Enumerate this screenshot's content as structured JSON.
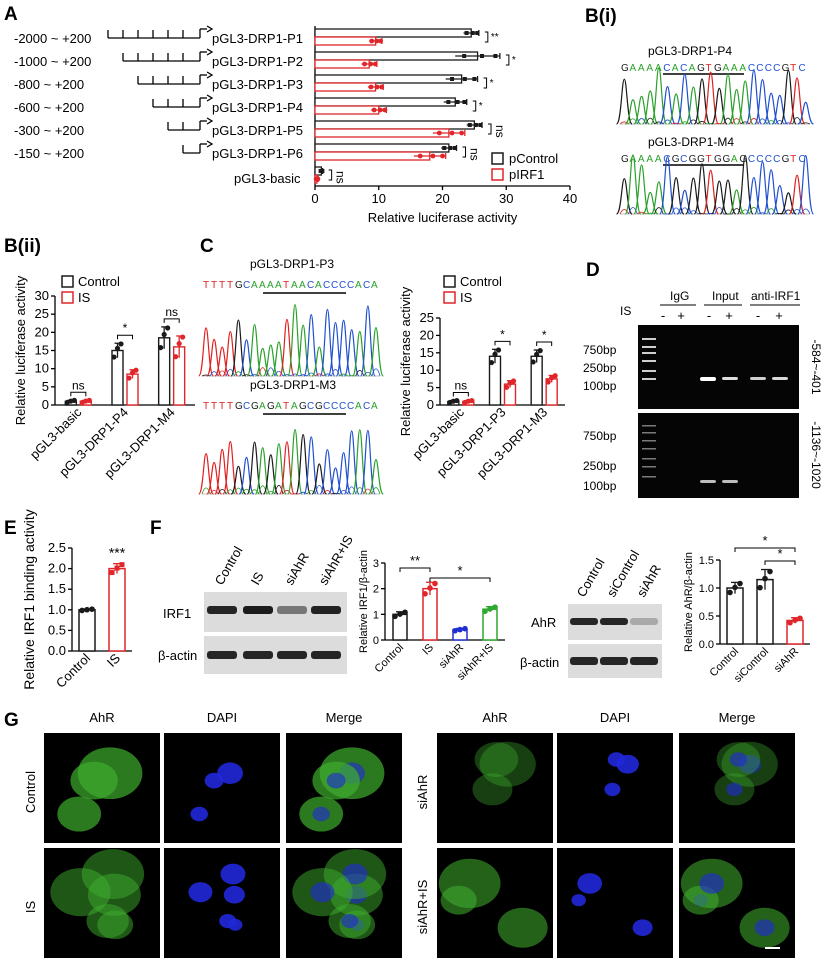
{
  "panel_labels": {
    "A": "A",
    "Bi": "B(i)",
    "Bii": "B(ii)",
    "C": "C",
    "D": "D",
    "E": "E",
    "F": "F",
    "G": "G"
  },
  "colors": {
    "control": "#1a1a1a",
    "irf1": "#e0262a",
    "sihr": "#2030d0",
    "sihr_is": "#2ea82e",
    "gel_bg": "#050505",
    "band": "#f2f2f2",
    "green": "#3fae2e",
    "blue": "#2028d8"
  },
  "panel_a": {
    "constructs": [
      {
        "range": "-2000 ~ +200",
        "name": "pGL3-DRP1-P1",
        "ticks": 6
      },
      {
        "range": "-1000 ~ +200",
        "name": "pGL3-DRP1-P2",
        "ticks": 5
      },
      {
        "range": "-800 ~ +200",
        "name": "pGL3-DRP1-P3",
        "ticks": 4
      },
      {
        "range": "-600 ~ +200",
        "name": "pGL3-DRP1-P4",
        "ticks": 3
      },
      {
        "range": "-300 ~ +200",
        "name": "pGL3-DRP1-P5",
        "ticks": 2
      },
      {
        "range": "-150 ~ +200",
        "name": "pGL3-DRP1-P6",
        "ticks": 1
      }
    ],
    "basic_label": "pGL3-basic",
    "legend": [
      "pControl",
      "pIRF1"
    ]
  },
  "panel_bi": {
    "title1": "pGL3-DRP1-P4",
    "seq1": [
      "G",
      "A",
      "A",
      "A",
      "A",
      "C",
      "A",
      "C",
      "A",
      "G",
      "T",
      "G",
      "A",
      "A",
      "A",
      "C",
      "C",
      "C",
      "C",
      "G",
      "T",
      "C"
    ],
    "title2": "pGL3-DRP1-M4",
    "seq2": [
      "G",
      "A",
      "A",
      "A",
      "A",
      "C",
      "G",
      "C",
      "G",
      "G",
      "T",
      "G",
      "G",
      "A",
      "G",
      "C",
      "C",
      "C",
      "C",
      "G",
      "T",
      "C"
    ]
  },
  "panel_c_seq": {
    "title1": "pGL3-DRP1-P3",
    "seq1": [
      "T",
      "T",
      "T",
      "T",
      "G",
      "C",
      "A",
      "A",
      "A",
      "A",
      "T",
      "A",
      "A",
      "C",
      "A",
      "C",
      "C",
      "C",
      "C",
      "A",
      "C",
      "A"
    ],
    "title2": "pGL3-DRP1-M3",
    "seq2": [
      "T",
      "T",
      "T",
      "T",
      "G",
      "C",
      "G",
      "A",
      "G",
      "A",
      "T",
      "A",
      "G",
      "C",
      "G",
      "C",
      "C",
      "C",
      "C",
      "A",
      "C",
      "A"
    ]
  },
  "panel_d": {
    "lane_label": "IS",
    "groups": [
      "IgG",
      "Input",
      "anti-IRF1"
    ],
    "signs": [
      "-",
      "+",
      "-",
      "+",
      "-",
      "+"
    ],
    "markers_top": [
      "750bp",
      "250bp",
      "100bp"
    ],
    "markers_bottom": [
      "750bp",
      "250bp",
      "100bp"
    ],
    "region_top": "-584~-401",
    "region_bottom": "-1136~-1020"
  },
  "panel_f": {
    "blot1_cols": [
      "Control",
      "IS",
      "siAhR",
      "siAhR+IS"
    ],
    "blot1_rows": [
      "IRF1",
      "β-actin"
    ],
    "blot2_cols": [
      "Control",
      "siControl",
      "siAhR"
    ],
    "blot2_rows": [
      "AhR",
      "β-actin"
    ]
  },
  "panel_g": {
    "col_heads": [
      "AhR",
      "DAPI",
      "Merge",
      "AhR",
      "DAPI",
      "Merge"
    ],
    "row_labels": [
      "Control",
      "IS",
      "siAhR",
      "siAhR+IS"
    ]
  },
  "chart_data": [
    {
      "id": "A",
      "type": "bar",
      "orientation": "horizontal",
      "categories": [
        "pGL3-DRP1-P1",
        "pGL3-DRP1-P2",
        "pGL3-DRP1-P3",
        "pGL3-DRP1-P4",
        "pGL3-DRP1-P5",
        "pGL3-DRP1-P6",
        "pGL3-basic"
      ],
      "series": [
        {
          "name": "pControl",
          "values": [
            24.5,
            25.5,
            23,
            22,
            25,
            21,
            1
          ],
          "errors": [
            1.2,
            3.5,
            2.5,
            1.8,
            1.2,
            1.2,
            0.2
          ]
        },
        {
          "name": "pIRF1",
          "values": [
            9.5,
            8.5,
            9.5,
            10,
            21,
            18,
            0.3
          ],
          "errors": [
            1,
            1.2,
            1.2,
            1.2,
            2.5,
            2.5,
            0.2
          ]
        }
      ],
      "significance": [
        "**",
        "*",
        "*",
        "*",
        "ns",
        "ns",
        "ns"
      ],
      "xlabel": "Relative luciferase activity",
      "xlim": [
        0,
        40
      ],
      "xticks": [
        0,
        10,
        20,
        30,
        40
      ]
    },
    {
      "id": "Bii",
      "type": "bar",
      "categories": [
        "pGL3-basic",
        "pGL3-DRP1-P4",
        "pGL3-DRP1-M4"
      ],
      "series": [
        {
          "name": "Control",
          "values": [
            1,
            15,
            18.5
          ],
          "errors": [
            0.3,
            2,
            3
          ]
        },
        {
          "name": "IS",
          "values": [
            1,
            8.5,
            16
          ],
          "errors": [
            0.3,
            1.2,
            3
          ]
        }
      ],
      "significance": [
        "ns",
        "*",
        "ns"
      ],
      "ylabel": "Relative luciferase activity",
      "ylim": [
        0,
        30
      ],
      "yticks": [
        0,
        5,
        10,
        15,
        20,
        25,
        30
      ],
      "legend": [
        "Control",
        "IS"
      ]
    },
    {
      "id": "C",
      "type": "bar",
      "categories": [
        "pGL3-basic",
        "pGL3-DRP1-P3",
        "pGL3-DRP1-M3"
      ],
      "series": [
        {
          "name": "Control",
          "values": [
            1,
            14,
            14
          ],
          "errors": [
            0.3,
            2,
            1.8
          ]
        },
        {
          "name": "IS",
          "values": [
            1,
            6,
            7.5
          ],
          "errors": [
            0.3,
            1,
            1
          ]
        }
      ],
      "significance": [
        "ns",
        "*",
        "*"
      ],
      "ylabel": "Relative luciferase activity",
      "ylim": [
        0,
        25
      ],
      "yticks": [
        0,
        5,
        10,
        15,
        20,
        25
      ],
      "legend": [
        "Control",
        "IS"
      ]
    },
    {
      "id": "E",
      "type": "bar",
      "categories": [
        "Control",
        "IS"
      ],
      "values": [
        1,
        2
      ],
      "errors": [
        0.02,
        0.12
      ],
      "significance": [
        "",
        "***"
      ],
      "ylabel": "Relative IRF1 binding activity",
      "ylim": [
        0,
        2.5
      ],
      "yticks": [
        0.0,
        0.5,
        1.0,
        1.5,
        2.0,
        2.5
      ]
    },
    {
      "id": "F1",
      "type": "bar",
      "categories": [
        "Control",
        "IS",
        "siAhR",
        "siAhR+IS"
      ],
      "values": [
        1,
        2,
        0.4,
        1.2
      ],
      "errors": [
        0.1,
        0.25,
        0.05,
        0.1
      ],
      "significance_pairs": [
        {
          "a": "Control",
          "b": "IS",
          "label": "**"
        },
        {
          "a": "IS",
          "b": "siAhR+IS",
          "label": "*"
        }
      ],
      "ylabel": "Relative IRF1/β-actin",
      "ylim": [
        0,
        3
      ],
      "yticks": [
        0,
        1,
        2,
        3
      ]
    },
    {
      "id": "F2",
      "type": "bar",
      "categories": [
        "Control",
        "siControl",
        "siAhR"
      ],
      "values": [
        1,
        1.15,
        0.42
      ],
      "errors": [
        0.1,
        0.18,
        0.05
      ],
      "significance_pairs": [
        {
          "a": "Control",
          "b": "siAhR",
          "label": "*"
        },
        {
          "a": "siControl",
          "b": "siAhR",
          "label": "*"
        }
      ],
      "ylabel": "Relative AhR/β-actin",
      "ylim": [
        0,
        1.5
      ],
      "yticks": [
        0.0,
        0.5,
        1.0,
        1.5
      ]
    }
  ]
}
